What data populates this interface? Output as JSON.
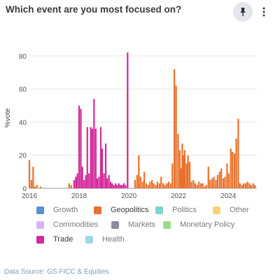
{
  "card": {
    "title": "Which event are you most focused on?",
    "pin_icon": "pin-icon",
    "more_icon": "more-vertical-icon"
  },
  "legend": [
    {
      "label": "Growth",
      "color": "#5b8fd0",
      "active": false
    },
    {
      "label": "Geopolitics",
      "color": "#e8702a",
      "active": true
    },
    {
      "label": "Politics",
      "color": "#7fd3d3",
      "active": false
    },
    {
      "label": "Other",
      "color": "#f1d27a",
      "active": false
    },
    {
      "label": "Commodities",
      "color": "#d6b4f3",
      "active": false
    },
    {
      "label": "Markets",
      "color": "#8a8d9e",
      "active": false
    },
    {
      "label": "Monetary Policy",
      "color": "#9bdc8c",
      "active": false
    },
    {
      "label": "Trade",
      "color": "#d42a9a",
      "active": true
    },
    {
      "label": "Health",
      "color": "#9fd6f2",
      "active": false
    }
  ],
  "source": "Data Source: GS FICC & Equities",
  "chart_data": {
    "type": "bar",
    "ylabel": "%vote",
    "ylim": [
      0,
      85
    ],
    "xlim": [
      2016.0,
      2025.15
    ],
    "yticks": [
      0,
      20,
      40,
      60,
      80
    ],
    "xticks": [
      2016,
      2018,
      2020,
      2022,
      2024
    ],
    "grid": true,
    "legend_position": "bottom",
    "series": [
      {
        "name": "Geopolitics",
        "color": "#e8702a",
        "x": [
          2016.0,
          2016.08,
          2016.15,
          2016.22,
          2016.3,
          2016.45,
          2017.6,
          2017.68,
          2019.95,
          2020.25,
          2020.33,
          2020.4,
          2020.47,
          2020.55,
          2020.62,
          2020.7,
          2020.78,
          2020.85,
          2020.93,
          2021.0,
          2021.08,
          2021.15,
          2021.23,
          2021.3,
          2021.38,
          2021.45,
          2021.53,
          2021.6,
          2021.68,
          2021.75,
          2021.83,
          2021.9,
          2021.98,
          2022.05,
          2022.1,
          2022.15,
          2022.2,
          2022.25,
          2022.32,
          2022.38,
          2022.45,
          2022.52,
          2022.6,
          2022.67,
          2022.75,
          2022.82,
          2022.9,
          2022.97,
          2023.05,
          2023.12,
          2023.2,
          2023.27,
          2023.35,
          2023.42,
          2023.5,
          2023.57,
          2023.65,
          2023.72,
          2023.8,
          2023.87,
          2023.95,
          2024.02,
          2024.1,
          2024.17,
          2024.25,
          2024.32,
          2024.4,
          2024.47,
          2024.55,
          2024.62,
          2024.7,
          2024.77,
          2024.85,
          2024.92,
          2025.0,
          2025.07
        ],
        "values": [
          17,
          5,
          13,
          1,
          2,
          1,
          3,
          2,
          60,
          5,
          8,
          20,
          7,
          4,
          10,
          3,
          2,
          4,
          5,
          3,
          2,
          4,
          3,
          7,
          3,
          2,
          3,
          4,
          3,
          15,
          72,
          62,
          33,
          23,
          12,
          27,
          20,
          23,
          15,
          20,
          16,
          4,
          5,
          3,
          2,
          4,
          3,
          3,
          1,
          2,
          13,
          5,
          6,
          7,
          5,
          8,
          10,
          12,
          6,
          7,
          15,
          9,
          24,
          22,
          21,
          30,
          42,
          3,
          2,
          3,
          3,
          4,
          3,
          2,
          3,
          2
        ]
      },
      {
        "name": "Trade",
        "color": "#d42a9a",
        "x": [
          2017.8,
          2017.87,
          2017.93,
          2018.0,
          2018.07,
          2018.13,
          2018.2,
          2018.27,
          2018.33,
          2018.4,
          2018.47,
          2018.53,
          2018.6,
          2018.67,
          2018.73,
          2018.8,
          2018.87,
          2018.93,
          2019.0,
          2019.07,
          2019.13,
          2019.2,
          2019.27,
          2019.33,
          2019.4,
          2019.47,
          2019.53,
          2019.6,
          2019.67,
          2019.73,
          2019.8,
          2019.87,
          2019.95
        ],
        "values": [
          5,
          7,
          9,
          50,
          48,
          13,
          5,
          8,
          37,
          9,
          37,
          36,
          54,
          36,
          6,
          7,
          37,
          24,
          9,
          27,
          6,
          8,
          4,
          3,
          2,
          3,
          2,
          3,
          2,
          2,
          3,
          2,
          82
        ]
      }
    ]
  }
}
